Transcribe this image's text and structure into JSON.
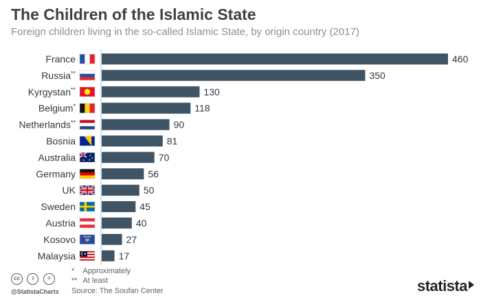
{
  "header": {
    "title": "The Children of the Islamic State",
    "subtitle": "Foreign children living in the so-called Islamic State, by origin country (2017)"
  },
  "chart_data": {
    "type": "bar",
    "orientation": "horizontal",
    "title": "The Children of the Islamic State",
    "subtitle": "Foreign children living in the so-called Islamic State, by origin country (2017)",
    "categories": [
      "France",
      "Russia",
      "Kyrgystan",
      "Belgium",
      "Netherlands",
      "Bosnia",
      "Australia",
      "Germany",
      "UK",
      "Sweden",
      "Austria",
      "Kosovo",
      "Malaysia"
    ],
    "category_marks": [
      "",
      "**",
      "**",
      "*",
      "**",
      "",
      "",
      "",
      "",
      "",
      "",
      "",
      ""
    ],
    "flags": [
      "flag-france",
      "flag-russia",
      "flag-kyrgyzstan",
      "flag-belgium",
      "flag-netherlands",
      "flag-bosnia",
      "flag-australia",
      "flag-germany",
      "flag-uk",
      "flag-sweden",
      "flag-austria",
      "flag-kosovo",
      "flag-malaysia"
    ],
    "values": [
      460,
      350,
      130,
      118,
      90,
      81,
      70,
      56,
      50,
      45,
      40,
      27,
      17
    ],
    "data_labels": [
      "460",
      "350",
      "130",
      "118",
      "90",
      "81",
      "70",
      "56",
      "50",
      "45",
      "40",
      "27",
      "17"
    ],
    "xlim": [
      0,
      460
    ],
    "grid": false,
    "bar_color": "#3f5465"
  },
  "footer": {
    "notes": [
      {
        "mark": "*",
        "text": "Approximately"
      },
      {
        "mark": "**",
        "text": "At least"
      }
    ],
    "source": "Source: The Soufan Center",
    "handle": "@StatistaCharts",
    "cc_icons": [
      "cc-icon",
      "attribution-icon",
      "no-derivatives-icon"
    ],
    "cc_texts": [
      "cc",
      "i",
      "="
    ],
    "brand": "statista"
  }
}
